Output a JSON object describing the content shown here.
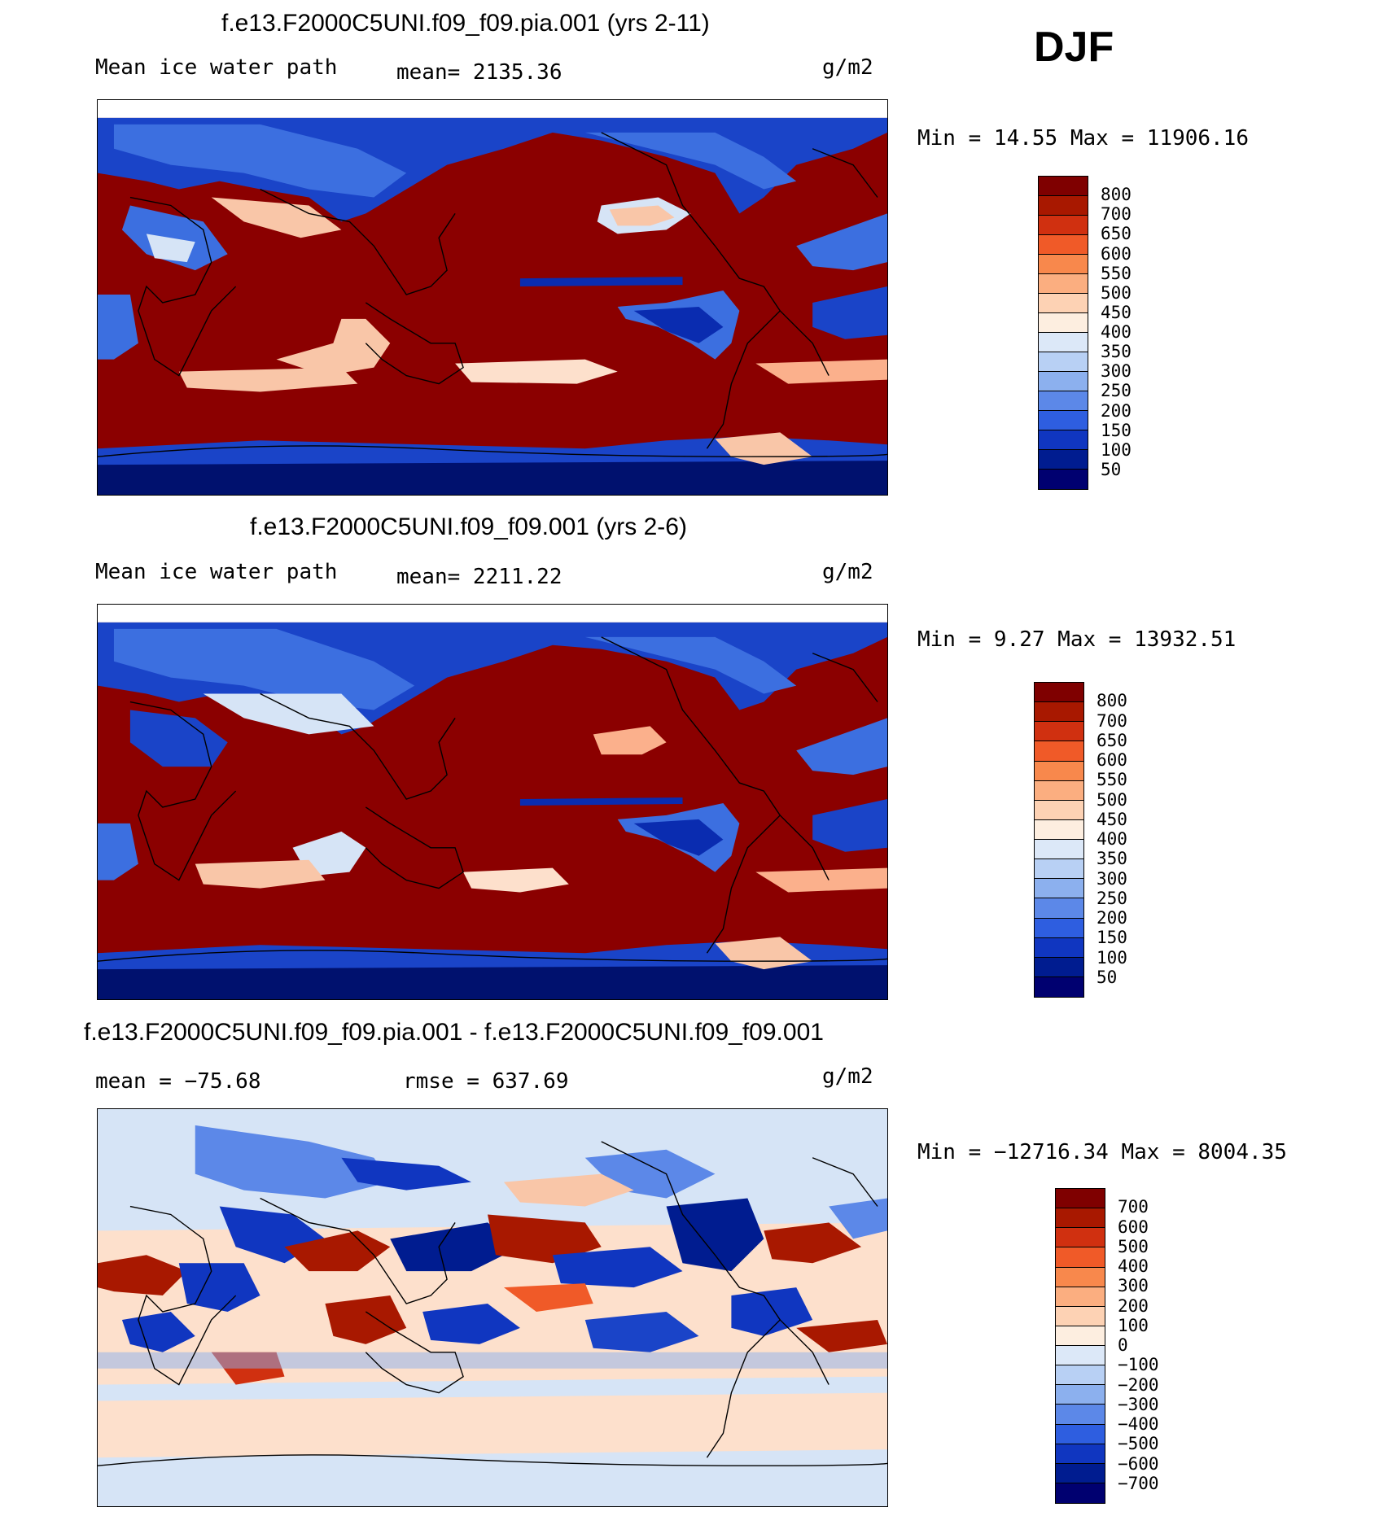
{
  "season": "DJF",
  "units": "g/m2",
  "panels": [
    {
      "id": "panel-1",
      "title": "f.e13.F2000C5UNI.f09_f09.pia.001 (yrs 2-11)",
      "left_label": "Mean ice water path",
      "center_label": "mean= 2135.36",
      "units": "g/m2",
      "minmax": "Min =   14.55 Max = 11906.16",
      "colorbar": {
        "labels": [
          "800",
          "700",
          "650",
          "600",
          "550",
          "500",
          "450",
          "400",
          "350",
          "300",
          "250",
          "200",
          "150",
          "100",
          "50"
        ],
        "colors": [
          "#7f0000",
          "#a81800",
          "#d03010",
          "#f05a28",
          "#f8884c",
          "#fbae80",
          "#fdd2b4",
          "#fdeee0",
          "#dce8f8",
          "#b8d0f4",
          "#8cb0ee",
          "#5c88e8",
          "#2e5ee0",
          "#1036c0",
          "#001c90",
          "#000070"
        ]
      }
    },
    {
      "id": "panel-2",
      "title": "f.e13.F2000C5UNI.f09_f09.001 (yrs 2-6)",
      "left_label": "Mean ice water path",
      "center_label": "mean= 2211.22",
      "units": "g/m2",
      "minmax": "Min =    9.27 Max = 13932.51",
      "colorbar": {
        "labels": [
          "800",
          "700",
          "650",
          "600",
          "550",
          "500",
          "450",
          "400",
          "350",
          "300",
          "250",
          "200",
          "150",
          "100",
          "50"
        ],
        "colors": [
          "#7f0000",
          "#a81800",
          "#d03010",
          "#f05a28",
          "#f8884c",
          "#fbae80",
          "#fdd2b4",
          "#fdeee0",
          "#dce8f8",
          "#b8d0f4",
          "#8cb0ee",
          "#5c88e8",
          "#2e5ee0",
          "#1036c0",
          "#001c90",
          "#000070"
        ]
      }
    },
    {
      "id": "panel-3",
      "title": "f.e13.F2000C5UNI.f09_f09.pia.001 - f.e13.F2000C5UNI.f09_f09.001",
      "left_label": "mean = −75.68",
      "center_label": "rmse = 637.69",
      "units": "g/m2",
      "minmax": "Min = −12716.34 Max = 8004.35",
      "colorbar": {
        "labels": [
          "700",
          "600",
          "500",
          "400",
          "300",
          "200",
          "100",
          "0",
          "−100",
          "−200",
          "−300",
          "−400",
          "−500",
          "−600",
          "−700"
        ],
        "colors": [
          "#7f0000",
          "#a81800",
          "#d03010",
          "#f05a28",
          "#f8884c",
          "#fbae80",
          "#fdd2b4",
          "#fdeee0",
          "#dce8f8",
          "#b8d0f4",
          "#8cb0ee",
          "#5c88e8",
          "#2e5ee0",
          "#1036c0",
          "#001c90",
          "#000070"
        ]
      }
    }
  ],
  "map_colors": {
    "high": "#8b0000",
    "mid_high": "#e8603a",
    "pale_red": "#f9c6a8",
    "pale_blue": "#d6e4f6",
    "mid_blue": "#3c6fe0",
    "low": "#0a2cb0",
    "deep": "#00116e",
    "coast": "#000000"
  }
}
